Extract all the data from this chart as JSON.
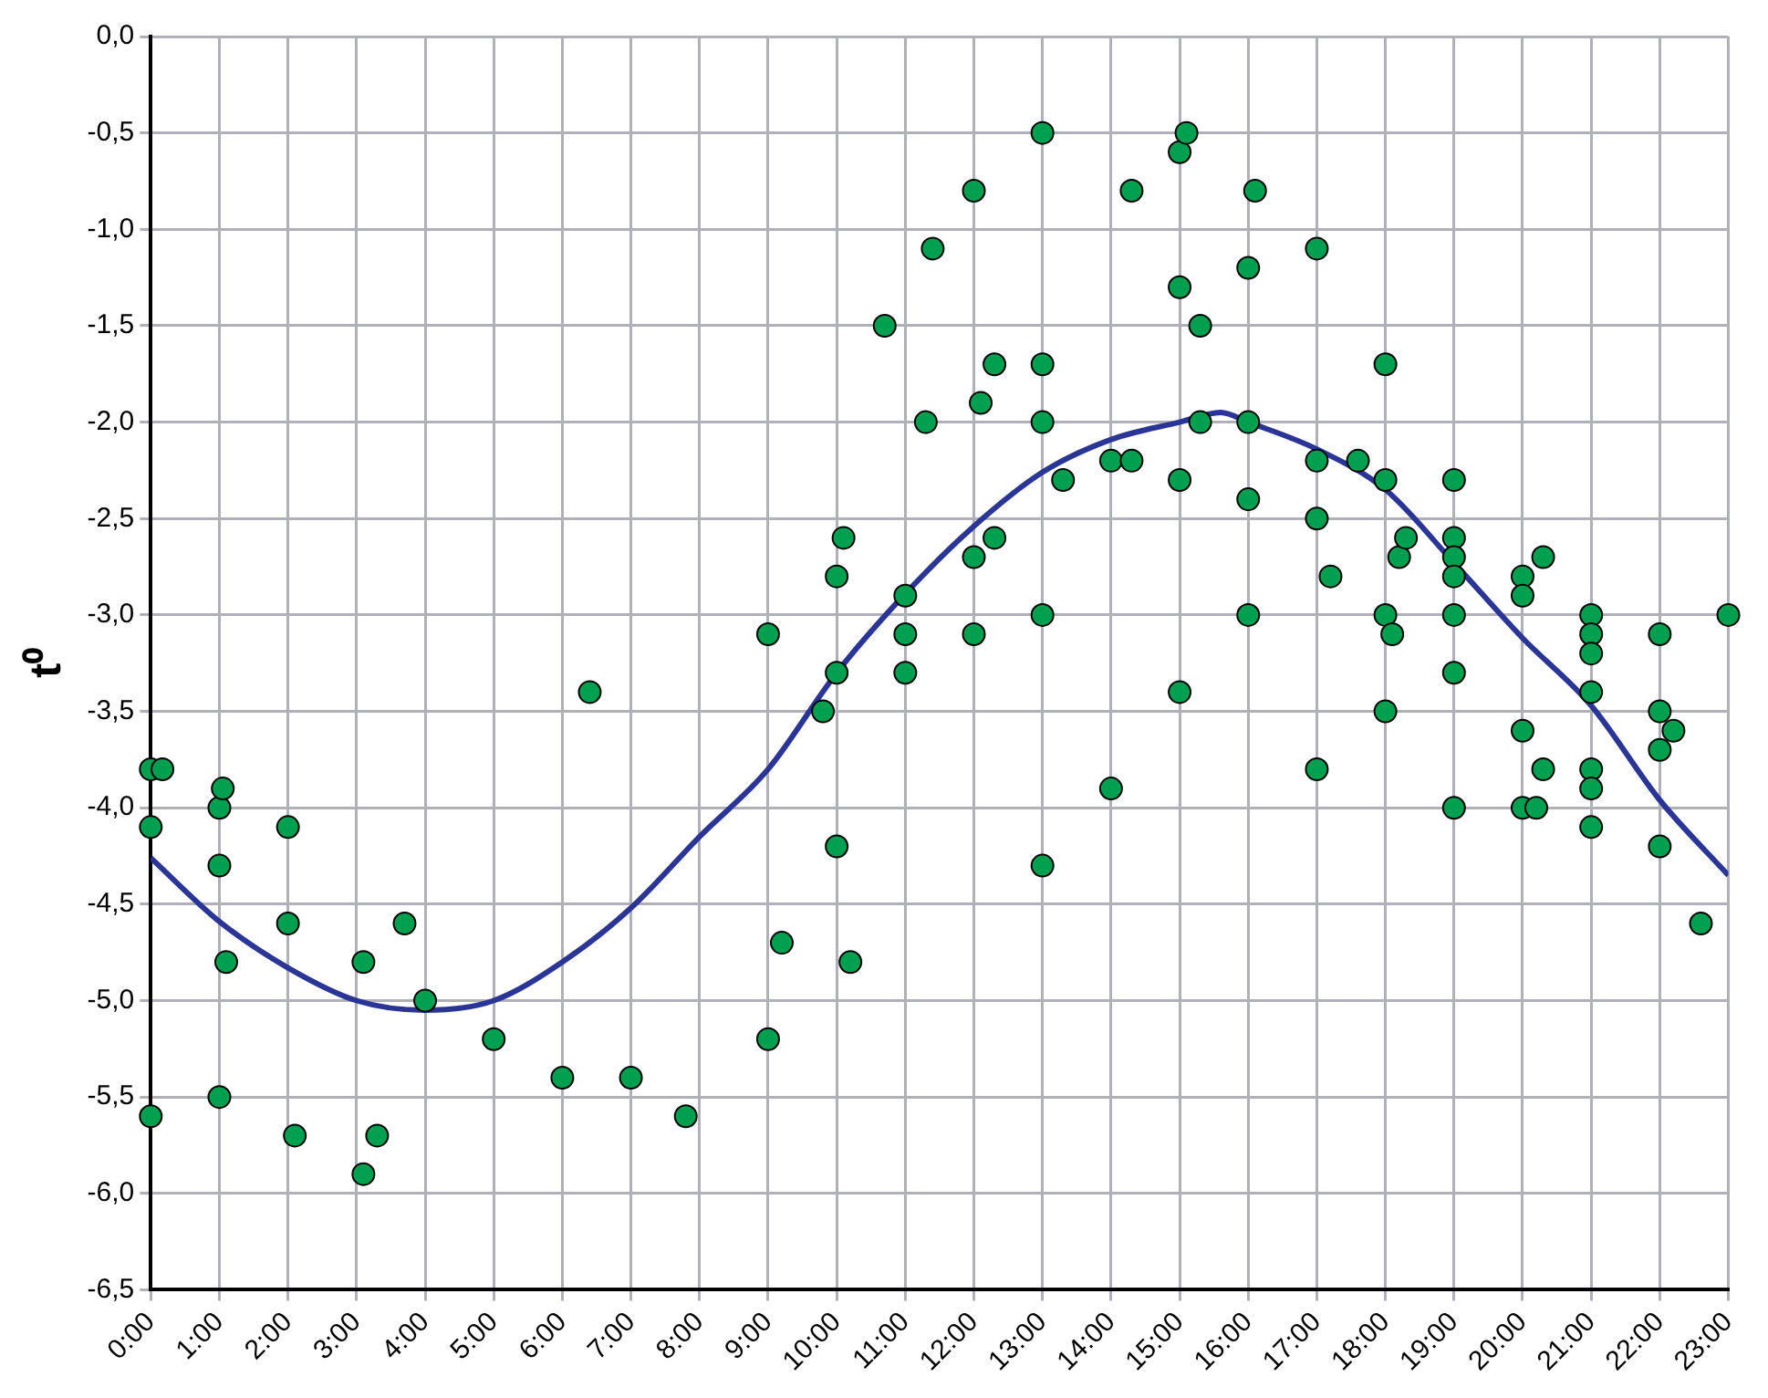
{
  "chart_data": {
    "type": "scatter",
    "ylabel": "t⁰",
    "xlim": [
      0,
      23
    ],
    "xticks": [
      {
        "value": 0,
        "label": "0:00"
      },
      {
        "value": 1,
        "label": "1:00"
      },
      {
        "value": 2,
        "label": "2:00"
      },
      {
        "value": 3,
        "label": "3:00"
      },
      {
        "value": 4,
        "label": "4:00"
      },
      {
        "value": 5,
        "label": "5:00"
      },
      {
        "value": 6,
        "label": "6:00"
      },
      {
        "value": 7,
        "label": "7:00"
      },
      {
        "value": 8,
        "label": "8:00"
      },
      {
        "value": 9,
        "label": "9:00"
      },
      {
        "value": 10,
        "label": "10:00"
      },
      {
        "value": 11,
        "label": "11:00"
      },
      {
        "value": 12,
        "label": "12:00"
      },
      {
        "value": 13,
        "label": "13:00"
      },
      {
        "value": 14,
        "label": "14:00"
      },
      {
        "value": 15,
        "label": "15:00"
      },
      {
        "value": 16,
        "label": "16:00"
      },
      {
        "value": 17,
        "label": "17:00"
      },
      {
        "value": 18,
        "label": "18:00"
      },
      {
        "value": 19,
        "label": "19:00"
      },
      {
        "value": 20,
        "label": "20:00"
      },
      {
        "value": 21,
        "label": "21:00"
      },
      {
        "value": 22,
        "label": "22:00"
      },
      {
        "value": 23,
        "label": "23:00"
      }
    ],
    "ylim": [
      -6.5,
      0
    ],
    "yticks": [
      {
        "value": -6.5,
        "label": "-6,5"
      },
      {
        "value": -6,
        "label": "-6,0"
      },
      {
        "value": -5.5,
        "label": "-5,5"
      },
      {
        "value": -5,
        "label": "-5,0"
      },
      {
        "value": -4.5,
        "label": "-4,5"
      },
      {
        "value": -4,
        "label": "-4,0"
      },
      {
        "value": -3.5,
        "label": "-3,5"
      },
      {
        "value": -3,
        "label": "-3,0"
      },
      {
        "value": -2.5,
        "label": "-2,5"
      },
      {
        "value": -2,
        "label": "-2,0"
      },
      {
        "value": -1.5,
        "label": "-1,5"
      },
      {
        "value": -1,
        "label": "-1,0"
      },
      {
        "value": -0.5,
        "label": "-0,5"
      },
      {
        "value": 0,
        "label": "0,0"
      }
    ],
    "grid": true,
    "marker": "circle",
    "series": [
      {
        "type": "scatter",
        "color": "#00a050",
        "x": [
          0,
          0.17,
          0,
          0,
          1,
          1.05,
          1,
          1.1,
          1,
          2,
          2,
          2.1,
          3.1,
          3.1,
          3.3,
          3.7,
          4,
          5,
          6,
          6.4,
          7,
          7.8,
          9,
          9,
          9.2,
          9.8,
          10,
          10,
          10.1,
          10,
          10.2,
          11,
          11,
          11,
          10.7,
          11.3,
          11.4,
          12,
          12,
          12,
          12.1,
          12.3,
          12.3,
          13,
          13,
          13,
          13,
          13,
          13.3,
          14,
          14,
          14.3,
          14.3,
          15,
          15.1,
          15,
          15,
          15,
          15.3,
          15.3,
          16,
          16.1,
          16,
          16,
          16,
          17,
          17,
          17,
          17.2,
          17,
          17.6,
          18,
          18,
          18,
          18.1,
          18,
          18.2,
          18.3,
          19,
          19,
          19,
          19,
          19,
          19,
          19,
          20,
          20,
          20.3,
          20,
          20,
          20.2,
          20.3,
          21,
          21,
          21,
          21,
          21,
          21,
          21,
          22,
          22,
          22,
          22.2,
          22,
          22.6,
          23
        ],
        "values": [
          -3.8,
          -3.8,
          -4.1,
          -5.6,
          -4.0,
          -3.9,
          -4.3,
          -4.8,
          -5.5,
          -4.1,
          -4.6,
          -5.7,
          -4.8,
          -5.9,
          -5.7,
          -4.6,
          -5.0,
          -5.2,
          -5.4,
          -3.4,
          -5.4,
          -5.6,
          -3.1,
          -5.2,
          -4.7,
          -3.5,
          -3.3,
          -2.8,
          -2.6,
          -4.2,
          -4.8,
          -2.9,
          -3.1,
          -3.3,
          -1.5,
          -2.0,
          -1.1,
          -0.8,
          -2.7,
          -3.1,
          -1.9,
          -1.7,
          -2.6,
          -0.5,
          -1.7,
          -2.0,
          -3.0,
          -4.3,
          -2.3,
          -2.2,
          -3.9,
          -2.2,
          -0.8,
          -0.6,
          -0.5,
          -1.3,
          -2.3,
          -3.4,
          -1.5,
          -2.0,
          -1.2,
          -0.8,
          -2.0,
          -2.4,
          -3.0,
          -1.1,
          -2.2,
          -2.5,
          -2.8,
          -3.8,
          -2.2,
          -1.7,
          -2.3,
          -3.0,
          -3.1,
          -3.5,
          -2.7,
          -2.6,
          -2.3,
          -2.6,
          -2.7,
          -2.8,
          -3.0,
          -3.3,
          -4.0,
          -2.8,
          -2.9,
          -2.7,
          -3.6,
          -4.0,
          -4.0,
          -3.8,
          -3.0,
          -3.1,
          -3.2,
          -3.4,
          -3.8,
          -3.9,
          -4.1,
          -3.1,
          -3.5,
          -3.7,
          -3.6,
          -4.2,
          -4.6,
          -3.0
        ]
      },
      {
        "type": "line",
        "color": "#2b3596",
        "marker": "none",
        "line_style": "solid",
        "x": [
          0,
          1,
          2,
          3,
          4,
          5,
          6,
          7,
          8,
          9,
          10,
          11,
          12,
          13,
          14,
          15,
          15.6,
          16,
          17,
          18,
          19,
          20,
          21,
          22,
          23
        ],
        "values": [
          -4.26,
          -4.59,
          -4.83,
          -5.0,
          -5.05,
          -5.0,
          -4.8,
          -4.52,
          -4.15,
          -3.8,
          -3.3,
          -2.89,
          -2.54,
          -2.26,
          -2.09,
          -2.0,
          -1.95,
          -2.0,
          -2.14,
          -2.35,
          -2.73,
          -3.12,
          -3.47,
          -3.96,
          -4.35
        ]
      }
    ]
  }
}
